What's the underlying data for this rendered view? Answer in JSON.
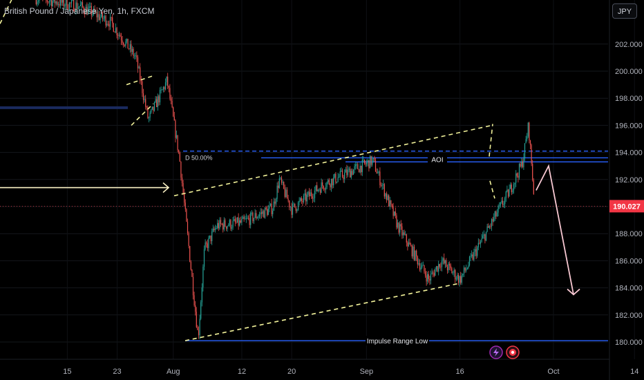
{
  "title": "British Pound / Japanese Yen, 1h, FXCM",
  "currency_button": "JPY",
  "colors": {
    "background": "#000000",
    "up": "#26a69a",
    "down": "#ef5350",
    "channel": "#f2f29a",
    "level": "#2962ff",
    "price_badge": "#f23645",
    "arrow_pink": "#f8c8d2",
    "arrow_left": "#fff6c8"
  },
  "icons": [
    "lightning-icon",
    "target-icon"
  ],
  "chart_data": {
    "type": "candlestick",
    "instrument": "GBP/JPY",
    "timeframe": "1h",
    "ylim": [
      179.5,
      205.5
    ],
    "yticks": [
      "180.000",
      "182.000",
      "184.000",
      "186.000",
      "188.000",
      "190.000",
      "192.000",
      "194.000",
      "196.000",
      "198.000",
      "200.000",
      "202.000"
    ],
    "xticks": [
      "15",
      "23",
      "Aug",
      "12",
      "20",
      "Sep",
      "16",
      "Oct",
      "14"
    ],
    "last_price": "190.027",
    "price_path": [
      [
        "Jul 10",
        205.4
      ],
      [
        "Jul 17",
        204.8
      ],
      [
        "Jul 22",
        203.6
      ],
      [
        "Jul 26",
        201.0
      ],
      [
        "Jul 28",
        196.4
      ],
      [
        "Jul 31",
        199.3
      ],
      [
        "Aug 2",
        193.6
      ],
      [
        "Aug 5",
        180.3
      ],
      [
        "Aug 6",
        186.8
      ],
      [
        "Aug 8",
        188.6
      ],
      [
        "Aug 12",
        188.8
      ],
      [
        "Aug 17",
        189.9
      ],
      [
        "Aug 18",
        192.0
      ],
      [
        "Aug 20",
        189.8
      ],
      [
        "Aug 25",
        191.6
      ],
      [
        "Sep 2",
        193.4
      ],
      [
        "Sep 6",
        188.6
      ],
      [
        "Sep 11",
        184.6
      ],
      [
        "Sep 13",
        186.0
      ],
      [
        "Sep 16",
        184.6
      ],
      [
        "Sep 24",
        191.2
      ],
      [
        "Sep 26",
        193.2
      ],
      [
        "Sep 27",
        196.0
      ],
      [
        "Sep 28",
        190.0
      ]
    ],
    "annotations": {
      "fib_label": "D 50.00%",
      "fib_level": 194.1,
      "aoi_label": "AOI",
      "aoi_levels": [
        193.6,
        193.3
      ],
      "impulse_label": "Impulse Range Low",
      "impulse_level": 180.1,
      "daily_level": 197.3,
      "forecast_path": [
        [
          "Sep 28",
          191.2
        ],
        [
          "Sep 30",
          193.0
        ],
        [
          "Oct 4",
          183.5
        ]
      ]
    }
  }
}
